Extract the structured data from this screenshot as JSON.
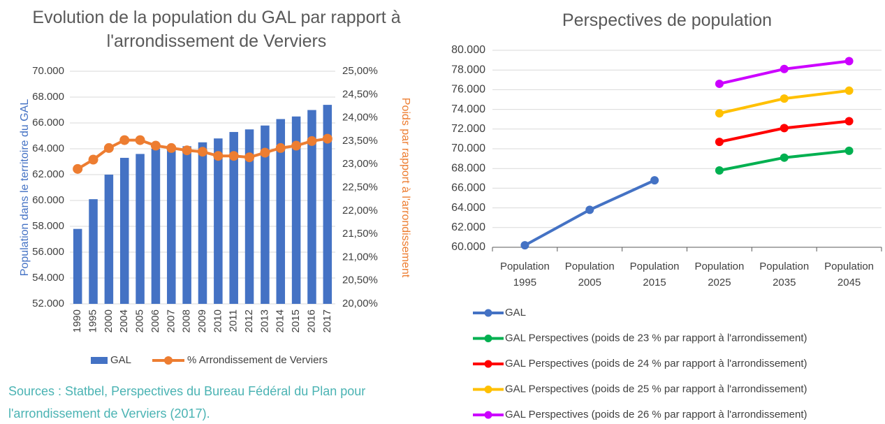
{
  "chart_data": [
    {
      "type": "bar",
      "title": "Evolution de la population du GAL par rapport à l'arrondissement de Verviers",
      "y_label": "Population dans le territoire du GAL",
      "y2_label": "Poids par rapport à l'arrondissement",
      "categories": [
        "1990",
        "1995",
        "2000",
        "2004",
        "2005",
        "2006",
        "2007",
        "2008",
        "2009",
        "2010",
        "2011",
        "2012",
        "2013",
        "2014",
        "2015",
        "2016",
        "2017"
      ],
      "series": [
        {
          "name": "GAL",
          "type": "bar",
          "color": "#4472c4",
          "values": [
            57800,
            60100,
            62000,
            63300,
            63600,
            64000,
            64000,
            64200,
            64500,
            64800,
            65300,
            65500,
            65800,
            66300,
            66500,
            67000,
            67400
          ]
        },
        {
          "name": "% Arrondissement de Verviers",
          "type": "line",
          "axis": "y2",
          "color": "#ed7d31",
          "values": [
            22.9,
            23.1,
            23.35,
            23.52,
            23.52,
            23.4,
            23.35,
            23.3,
            23.27,
            23.18,
            23.18,
            23.15,
            23.25,
            23.35,
            23.4,
            23.5,
            23.55
          ]
        }
      ],
      "ylim": [
        52000,
        70000
      ],
      "yticks": [
        {
          "value": 52000,
          "label": "52.000"
        },
        {
          "value": 54000,
          "label": "54.000"
        },
        {
          "value": 56000,
          "label": "56.000"
        },
        {
          "value": 58000,
          "label": "58.000"
        },
        {
          "value": 60000,
          "label": "60.000"
        },
        {
          "value": 62000,
          "label": "62.000"
        },
        {
          "value": 64000,
          "label": "64.000"
        },
        {
          "value": 66000,
          "label": "66.000"
        },
        {
          "value": 68000,
          "label": "68.000"
        },
        {
          "value": 70000,
          "label": "70.000"
        }
      ],
      "y2lim": [
        20,
        25
      ],
      "y2ticks": [
        {
          "value": 20,
          "label": "20,00%"
        },
        {
          "value": 20.5,
          "label": "20,50%"
        },
        {
          "value": 21,
          "label": "21,00%"
        },
        {
          "value": 21.5,
          "label": "21,50%"
        },
        {
          "value": 22,
          "label": "22,00%"
        },
        {
          "value": 22.5,
          "label": "22,50%"
        },
        {
          "value": 23,
          "label": "23,00%"
        },
        {
          "value": 23.5,
          "label": "23,50%"
        },
        {
          "value": 24,
          "label": "24,00%"
        },
        {
          "value": 24.5,
          "label": "24,50%"
        },
        {
          "value": 25,
          "label": "25,00%"
        }
      ],
      "grid": true,
      "legend": "bottom"
    },
    {
      "type": "line",
      "title": "Perspectives de population",
      "categories": [
        "Population 1995",
        "Population 2005",
        "Population 2015",
        "Population 2025",
        "Population 2035",
        "Population 2045"
      ],
      "series": [
        {
          "name": "GAL",
          "color": "#4472c4",
          "values": [
            60200,
            63800,
            66800,
            null,
            null,
            null
          ]
        },
        {
          "name": "GAL Perspectives (poids de 23 % par rapport à l'arrondissement)",
          "color": "#00b050",
          "values": [
            null,
            null,
            null,
            67800,
            69100,
            69800
          ]
        },
        {
          "name": "GAL Perspectives (poids de 24 % par rapport à l'arrondissement)",
          "color": "#ff0000",
          "values": [
            null,
            null,
            null,
            70700,
            72100,
            72800
          ]
        },
        {
          "name": "GAL Perspectives (poids de 25 % par rapport à l'arrondissement)",
          "color": "#ffc000",
          "values": [
            null,
            null,
            null,
            73600,
            75100,
            75900
          ]
        },
        {
          "name": "GAL Perspectives (poids de 26 % par rapport à l'arrondissement)",
          "color": "#cc00ff",
          "values": [
            null,
            null,
            null,
            76600,
            78100,
            78900
          ]
        }
      ],
      "ylim": [
        60000,
        80000
      ],
      "yticks": [
        {
          "value": 60000,
          "label": "60.000"
        },
        {
          "value": 62000,
          "label": "62.000"
        },
        {
          "value": 64000,
          "label": "64.000"
        },
        {
          "value": 66000,
          "label": "66.000"
        },
        {
          "value": 68000,
          "label": "68.000"
        },
        {
          "value": 70000,
          "label": "70.000"
        },
        {
          "value": 72000,
          "label": "72.000"
        },
        {
          "value": 74000,
          "label": "74.000"
        },
        {
          "value": 76000,
          "label": "76.000"
        },
        {
          "value": 78000,
          "label": "78.000"
        },
        {
          "value": 80000,
          "label": "80.000"
        }
      ],
      "grid": true,
      "legend": "bottom"
    }
  ],
  "sources": "Sources : Statbel, Perspectives du Bureau Fédéral du Plan pour l'arrondissement de Verviers (2017)."
}
